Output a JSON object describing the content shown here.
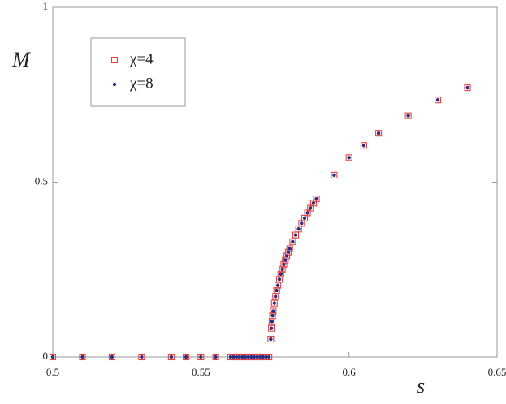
{
  "chart_data": {
    "type": "scatter",
    "x_label": "s",
    "y_label": "M",
    "x": [
      0.5,
      0.51,
      0.52,
      0.53,
      0.54,
      0.545,
      0.55,
      0.555,
      0.56,
      0.561,
      0.562,
      0.563,
      0.564,
      0.565,
      0.566,
      0.567,
      0.568,
      0.569,
      0.57,
      0.571,
      0.572,
      0.573,
      0.5736,
      0.5738,
      0.574,
      0.5742,
      0.5744,
      0.5748,
      0.5752,
      0.5756,
      0.576,
      0.5765,
      0.577,
      0.5775,
      0.578,
      0.5785,
      0.579,
      0.5795,
      0.58,
      0.581,
      0.582,
      0.583,
      0.584,
      0.585,
      0.586,
      0.587,
      0.588,
      0.589,
      0.595,
      0.6,
      0.605,
      0.61,
      0.62,
      0.63,
      0.64
    ],
    "series": [
      {
        "name": "χ=4",
        "color": "#e8413c",
        "marker": "square",
        "values": [
          0,
          0,
          0,
          0,
          0,
          0,
          0,
          0,
          0,
          0,
          0,
          0,
          0,
          0,
          0,
          0,
          0,
          0,
          0,
          0,
          0,
          0,
          0.051,
          0.082,
          0.101,
          0.118,
          0.131,
          0.154,
          0.173,
          0.19,
          0.205,
          0.222,
          0.237,
          0.251,
          0.265,
          0.277,
          0.289,
          0.3,
          0.31,
          0.33,
          0.349,
          0.366,
          0.382,
          0.397,
          0.412,
          0.426,
          0.44,
          0.452,
          0.52,
          0.57,
          0.605,
          0.64,
          0.69,
          0.735,
          0.77
        ]
      },
      {
        "name": "χ=8",
        "color": "#2b2e83",
        "marker": "circle",
        "values": [
          0,
          0,
          0,
          0,
          0,
          0,
          0,
          0,
          0,
          0,
          0,
          0,
          0,
          0,
          0,
          0,
          0,
          0,
          0,
          0,
          0,
          0,
          0.051,
          0.082,
          0.101,
          0.118,
          0.131,
          0.154,
          0.173,
          0.19,
          0.205,
          0.222,
          0.237,
          0.251,
          0.265,
          0.277,
          0.289,
          0.3,
          0.31,
          0.33,
          0.349,
          0.366,
          0.382,
          0.397,
          0.412,
          0.426,
          0.44,
          0.452,
          0.52,
          0.57,
          0.605,
          0.64,
          0.69,
          0.735,
          0.77
        ]
      }
    ],
    "xlim": [
      0.5,
      0.65
    ],
    "ylim": [
      0,
      1
    ],
    "xticks": [
      0.5,
      0.55,
      0.6,
      0.65
    ],
    "yticks": [
      0,
      0.5,
      1
    ],
    "legend": "upper-left",
    "grid": false
  }
}
